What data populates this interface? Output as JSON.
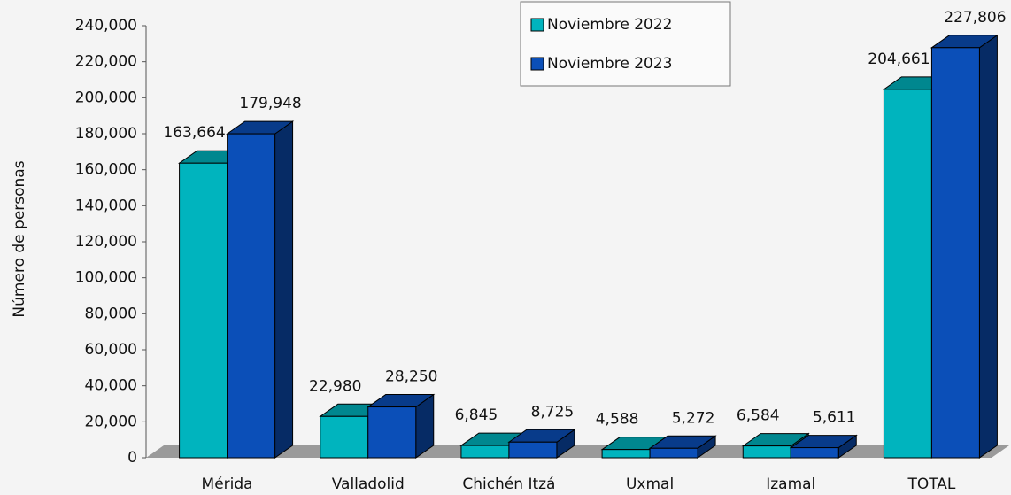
{
  "chart_data": {
    "type": "bar3d",
    "y_label": "Número de personas",
    "categories": [
      "Mérida",
      "Valladolid",
      "Chichén Itzá",
      "Uxmal",
      "Izamal",
      "TOTAL"
    ],
    "series": [
      {
        "name": "Noviembre 2022",
        "color": "#00b4be",
        "values": [
          163664,
          22980,
          6845,
          4588,
          6584,
          204661
        ],
        "value_labels": [
          "163,664",
          "22,980",
          "6,845",
          "4,588",
          "6,584",
          "204,661"
        ]
      },
      {
        "name": "Noviembre 2023",
        "color": "#0b4fb8",
        "values": [
          179948,
          28250,
          8725,
          5272,
          5611,
          227806
        ],
        "value_labels": [
          "179,948",
          "28,250",
          "8,725",
          "5,272",
          "5,611",
          "227,806"
        ]
      }
    ],
    "ylim": [
      0,
      240000
    ],
    "yticks": [
      0,
      {
        "value": 20000,
        "label": "20,000"
      },
      {
        "value": 40000,
        "label": "40,000"
      },
      {
        "value": 60000,
        "label": "60,000"
      },
      {
        "value": 80000,
        "label": "80,000"
      },
      {
        "value": 100000,
        "label": "100,000"
      },
      {
        "value": 120000,
        "label": "120,000"
      },
      {
        "value": 140000,
        "label": "140,000"
      },
      {
        "value": 160000,
        "label": "160,000"
      },
      {
        "value": 180000,
        "label": "180,000"
      },
      {
        "value": 200000,
        "label": "200,000"
      },
      {
        "value": 220000,
        "label": "220,000"
      },
      {
        "value": 240000,
        "label": "240,000"
      }
    ],
    "legend": "top-right"
  }
}
